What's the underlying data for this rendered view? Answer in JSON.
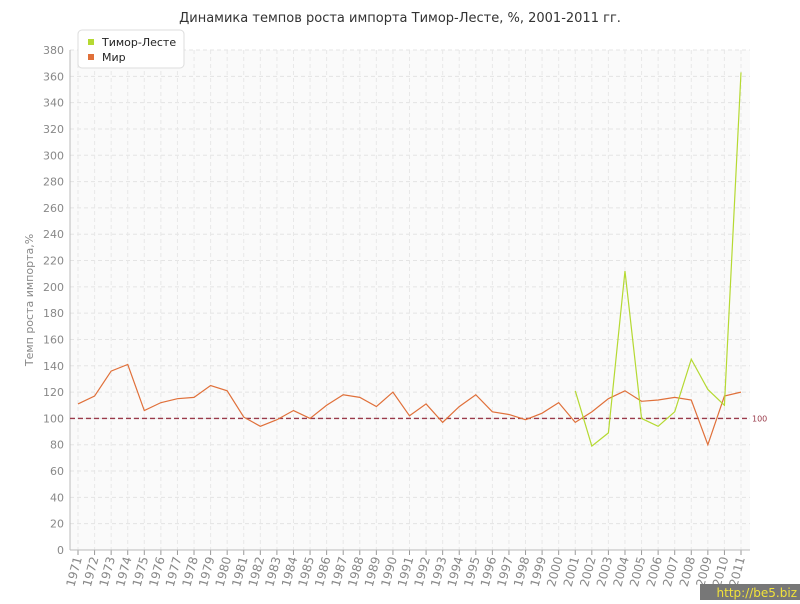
{
  "chart_data": {
    "type": "line",
    "title": "Динамика темпов роста импорта Тимор-Лесте, %, 2001-2011 гг.",
    "y_label": "Темп роста импорта,%",
    "categories": [
      "1971",
      "1972",
      "1973",
      "1974",
      "1975",
      "1976",
      "1977",
      "1978",
      "1979",
      "1980",
      "1981",
      "1982",
      "1983",
      "1984",
      "1985",
      "1986",
      "1987",
      "1988",
      "1989",
      "1990",
      "1991",
      "1992",
      "1993",
      "1994",
      "1995",
      "1996",
      "1997",
      "1998",
      "1999",
      "2000",
      "2001",
      "2002",
      "2003",
      "2004",
      "2005",
      "2006",
      "2007",
      "2008",
      "2009",
      "2010",
      "2011"
    ],
    "series": [
      {
        "name": "Тимор-Лесте",
        "color": "#b5d932",
        "values": [
          null,
          null,
          null,
          null,
          null,
          null,
          null,
          null,
          null,
          null,
          null,
          null,
          null,
          null,
          null,
          null,
          null,
          null,
          null,
          null,
          null,
          null,
          null,
          null,
          null,
          null,
          null,
          null,
          null,
          null,
          121,
          79,
          89,
          212,
          100,
          94,
          105,
          145,
          122,
          110,
          363
        ]
      },
      {
        "name": "Мир",
        "color": "#e0703a",
        "values": [
          111,
          117,
          136,
          141,
          106,
          112,
          115,
          116,
          125,
          121,
          101,
          94,
          99,
          106,
          100,
          110,
          118,
          116,
          109,
          120,
          102,
          111,
          97,
          109,
          118,
          105,
          103,
          99,
          104,
          112,
          97,
          105,
          115,
          121,
          113,
          114,
          116,
          114,
          80,
          117,
          120
        ]
      }
    ],
    "ylim": [
      0,
      380
    ],
    "yticks": [
      0,
      20,
      40,
      60,
      80,
      100,
      120,
      140,
      160,
      180,
      200,
      220,
      240,
      260,
      280,
      300,
      320,
      340,
      360,
      380
    ],
    "grid": true,
    "reference_line": 100,
    "legend": "top-left",
    "watermark": "http://be5.biz"
  }
}
